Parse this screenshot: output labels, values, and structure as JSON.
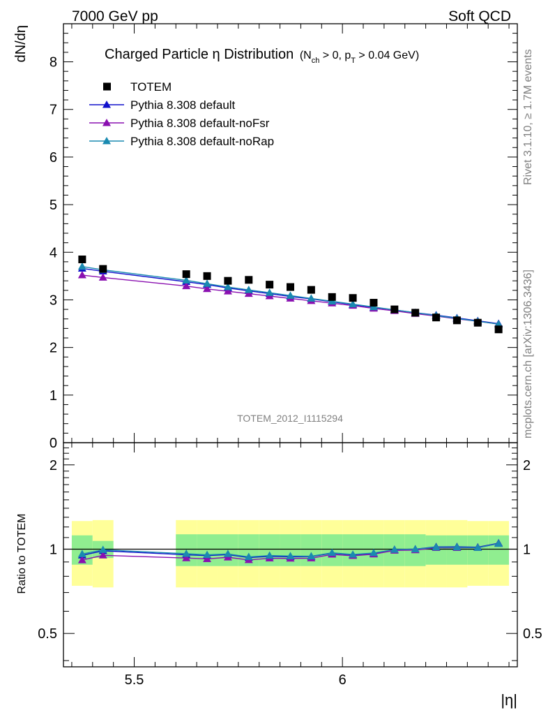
{
  "header": {
    "left": "7000 GeV pp",
    "right": "Soft QCD"
  },
  "side_labels": {
    "rivet": "Rivet 3.1.10, ≥ 1.7M events",
    "mcplots": "mcplots.cern.ch [arXiv:1306.3436]"
  },
  "chart_data": {
    "type": "scatter",
    "title": "Charged Particle η Distribution",
    "title_cuts": {
      "n_main": "N",
      "n_sub": "ch",
      "n_rest": " > 0, p",
      "p_sub": "T",
      "p_rest": " > 0.04 GeV"
    },
    "ylabel": "dN/dη",
    "xlabel": "|η|",
    "ratio_ylabel": "Ratio to TOTEM",
    "watermark": "TOTEM_2012_I1115294",
    "xlim": [
      5.33,
      6.42
    ],
    "ylim": [
      0,
      8.8
    ],
    "ratio_ylim": [
      0.38,
      2.4
    ],
    "ratio_scale": "log",
    "x_ticks": [
      5.5,
      6
    ],
    "y_ticks": [
      0,
      1,
      2,
      3,
      4,
      5,
      6,
      7,
      8
    ],
    "ratio_ticks": [
      0.5,
      1,
      2
    ],
    "legend_position": "top-left",
    "data": {
      "name": "TOTEM",
      "color": "#000000",
      "x": [
        5.375,
        5.425,
        5.625,
        5.675,
        5.725,
        5.775,
        5.825,
        5.875,
        5.925,
        5.975,
        6.025,
        6.075,
        6.125,
        6.175,
        6.225,
        6.275,
        6.325,
        6.375
      ],
      "y": [
        3.85,
        3.65,
        3.54,
        3.5,
        3.4,
        3.42,
        3.32,
        3.27,
        3.21,
        3.06,
        3.04,
        2.94,
        2.8,
        2.73,
        2.63,
        2.57,
        2.52,
        2.38
      ],
      "band_inner": [
        0.12,
        0.07,
        0.13,
        0.13,
        0.13,
        0.13,
        0.13,
        0.13,
        0.13,
        0.13,
        0.13,
        0.13,
        0.13,
        0.13,
        0.12,
        0.12,
        0.12,
        0.12
      ],
      "band_outer": [
        0.26,
        0.27,
        0.27,
        0.27,
        0.27,
        0.27,
        0.27,
        0.27,
        0.27,
        0.27,
        0.27,
        0.27,
        0.27,
        0.27,
        0.27,
        0.27,
        0.26,
        0.26
      ]
    },
    "series": [
      {
        "name": "Pythia 8.308 default",
        "color": "#1010cc",
        "y": [
          3.66,
          3.6,
          3.38,
          3.32,
          3.25,
          3.19,
          3.13,
          3.07,
          3.02,
          2.96,
          2.9,
          2.84,
          2.79,
          2.73,
          2.68,
          2.62,
          2.56,
          2.5
        ]
      },
      {
        "name": "Pythia 8.308 default-noFsr",
        "color": "#8a10b0",
        "y": [
          3.52,
          3.47,
          3.29,
          3.23,
          3.18,
          3.13,
          3.08,
          3.03,
          2.98,
          2.93,
          2.88,
          2.82,
          2.77,
          2.71,
          2.66,
          2.6,
          2.55,
          2.49
        ]
      },
      {
        "name": "Pythia 8.308 default-noRap",
        "color": "#1a8ab0",
        "y": [
          3.7,
          3.63,
          3.41,
          3.34,
          3.27,
          3.21,
          3.15,
          3.09,
          3.03,
          2.97,
          2.91,
          2.85,
          2.79,
          2.73,
          2.67,
          2.61,
          2.55,
          2.49
        ]
      }
    ]
  }
}
